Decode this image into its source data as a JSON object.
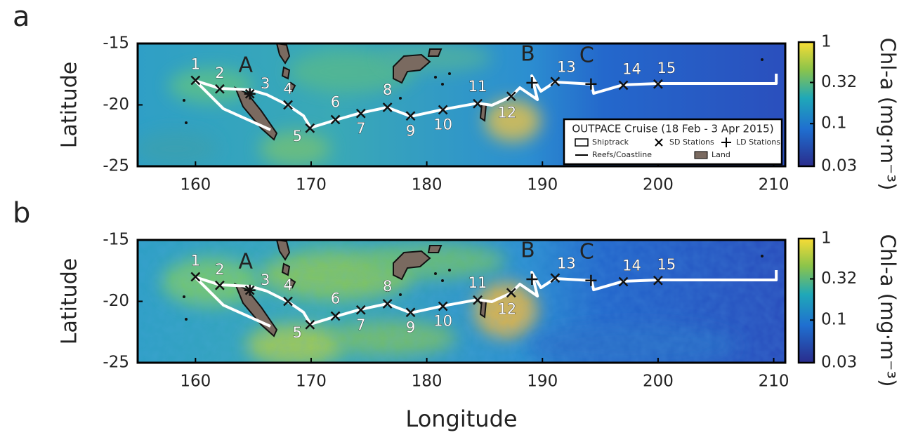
{
  "chart_data": [
    {
      "type": "map",
      "panel_label": "a",
      "ylabel": "Latitude",
      "xlim": [
        155,
        211
      ],
      "ylim": [
        -25,
        -15
      ],
      "xticks": [
        160,
        170,
        180,
        190,
        200,
        210
      ],
      "yticks": [
        -15,
        -20,
        -25
      ],
      "track": {
        "lon": [
          166.48,
          162.41,
          159.98,
          162.11,
          164.72,
          166.18,
          168.0,
          169.34,
          169.95,
          172.13,
          174.26,
          176.57,
          178.63,
          181.43,
          184.4,
          185.62,
          187.26,
          188.05,
          189.57,
          189.08,
          189.87,
          191.09,
          194.25,
          194.43,
          196.98,
          200.02,
          210.22,
          210.22
        ],
        "lat": [
          -22.03,
          -20.31,
          -18.03,
          -18.66,
          -18.77,
          -19.17,
          -20.03,
          -20.89,
          -21.86,
          -21.23,
          -20.66,
          -20.2,
          -20.94,
          -20.37,
          -19.86,
          -20.03,
          -19.34,
          -18.6,
          -19.57,
          -17.63,
          -18.89,
          -18.14,
          -18.31,
          -19.06,
          -18.37,
          -18.26,
          -18.26,
          -17.46
        ]
      },
      "sd_stations": [
        {
          "label": "1",
          "lon": 160.0,
          "lat": -18.0
        },
        {
          "label": "2",
          "lon": 162.1,
          "lat": -18.7
        },
        {
          "label": "3",
          "lon": 164.7,
          "lat": -19.1
        },
        {
          "label": "4",
          "lon": 168.0,
          "lat": -20.0
        },
        {
          "label": "5",
          "lon": 169.9,
          "lat": -21.9
        },
        {
          "label": "6",
          "lon": 172.1,
          "lat": -21.2
        },
        {
          "label": "7",
          "lon": 174.3,
          "lat": -20.7
        },
        {
          "label": "8",
          "lon": 176.6,
          "lat": -20.2
        },
        {
          "label": "9",
          "lon": 178.6,
          "lat": -20.9
        },
        {
          "label": "10",
          "lon": 181.4,
          "lat": -20.4
        },
        {
          "label": "11",
          "lon": 184.4,
          "lat": -19.9
        },
        {
          "label": "12",
          "lon": 187.3,
          "lat": -19.3
        },
        {
          "label": "13",
          "lon": 191.1,
          "lat": -18.1
        },
        {
          "label": "14",
          "lon": 197.0,
          "lat": -18.4
        },
        {
          "label": "15",
          "lon": 200.0,
          "lat": -18.3
        }
      ],
      "ld_stations": [
        {
          "label": "A",
          "color": "#a6e39a",
          "lon": 164.7,
          "lat": -19.1
        },
        {
          "label": "B",
          "color": "#e8423a",
          "lon": 189.1,
          "lat": -18.2
        },
        {
          "label": "C",
          "color": "#c8c8ff",
          "lon": 194.2,
          "lat": -18.3
        }
      ],
      "colorbar": {
        "label": "Chl-a (mg·m⁻³)",
        "lim": [
          0.03,
          1
        ],
        "ticks": [
          0.03,
          0.1,
          0.32,
          1
        ],
        "log": true
      },
      "legend": {
        "title": "OUTPACE Cruise (18 Feb - 3 Apr 2015)",
        "entries": [
          "Shiptrack",
          "SD Stations",
          "LD Stations",
          "Reefs/Coastline",
          "Land"
        ]
      }
    },
    {
      "type": "map",
      "panel_label": "b",
      "ylabel": "Latitude",
      "xlabel": "Longitude",
      "xlim": [
        155,
        211
      ],
      "ylim": [
        -25,
        -15
      ],
      "xticks": [
        160,
        170,
        180,
        190,
        200,
        210
      ],
      "yticks": [
        -15,
        -20,
        -25
      ],
      "track": {
        "lon": [
          166.48,
          162.41,
          159.98,
          162.11,
          164.72,
          166.18,
          168.0,
          169.34,
          169.95,
          172.13,
          174.26,
          176.57,
          178.63,
          181.43,
          184.4,
          185.62,
          187.26,
          188.05,
          189.57,
          189.08,
          189.87,
          191.09,
          194.25,
          194.43,
          196.98,
          200.02,
          210.22,
          210.22
        ],
        "lat": [
          -22.03,
          -20.31,
          -18.03,
          -18.66,
          -18.77,
          -19.17,
          -20.03,
          -20.89,
          -21.86,
          -21.23,
          -20.66,
          -20.2,
          -20.94,
          -20.37,
          -19.86,
          -20.03,
          -19.34,
          -18.6,
          -19.57,
          -17.63,
          -18.89,
          -18.14,
          -18.31,
          -19.06,
          -18.37,
          -18.26,
          -18.26,
          -17.46
        ]
      },
      "sd_stations": [
        {
          "label": "1",
          "lon": 160.0,
          "lat": -18.0
        },
        {
          "label": "2",
          "lon": 162.1,
          "lat": -18.7
        },
        {
          "label": "3",
          "lon": 164.7,
          "lat": -19.1
        },
        {
          "label": "4",
          "lon": 168.0,
          "lat": -20.0
        },
        {
          "label": "5",
          "lon": 169.9,
          "lat": -21.9
        },
        {
          "label": "6",
          "lon": 172.1,
          "lat": -21.2
        },
        {
          "label": "7",
          "lon": 174.3,
          "lat": -20.7
        },
        {
          "label": "8",
          "lon": 176.6,
          "lat": -20.2
        },
        {
          "label": "9",
          "lon": 178.6,
          "lat": -20.9
        },
        {
          "label": "10",
          "lon": 181.4,
          "lat": -20.4
        },
        {
          "label": "11",
          "lon": 184.4,
          "lat": -19.9
        },
        {
          "label": "12",
          "lon": 187.3,
          "lat": -19.3
        },
        {
          "label": "13",
          "lon": 191.1,
          "lat": -18.1
        },
        {
          "label": "14",
          "lon": 197.0,
          "lat": -18.4
        },
        {
          "label": "15",
          "lon": 200.0,
          "lat": -18.3
        }
      ],
      "ld_stations": [
        {
          "label": "A",
          "color": "#a6e39a",
          "lon": 164.7,
          "lat": -19.1
        },
        {
          "label": "B",
          "color": "#e8423a",
          "lon": 189.1,
          "lat": -18.2
        },
        {
          "label": "C",
          "color": "#c8c8ff",
          "lon": 194.2,
          "lat": -18.3
        }
      ],
      "colorbar": {
        "label": "Chl-a (mg·m⁻³)",
        "lim": [
          0.03,
          1
        ],
        "ticks": [
          0.03,
          0.1,
          0.32,
          1
        ],
        "log": true
      }
    }
  ]
}
